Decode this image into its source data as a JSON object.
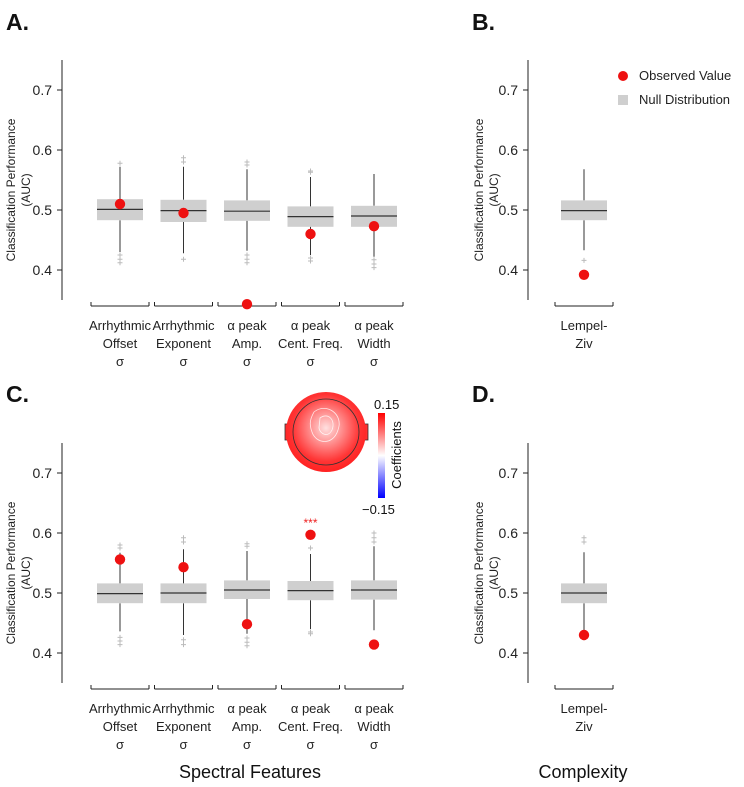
{
  "chart_data": [
    {
      "panel": "A.",
      "type": "box",
      "ylabel_line1": "Classification Performance",
      "ylabel_line2": "(AUC)",
      "ylim": [
        0.35,
        0.75
      ],
      "yticks": [
        "0.4",
        "0.5",
        "0.6",
        "0.7"
      ],
      "categories": [
        {
          "lines": [
            "Arrhythmic",
            "Offset",
            "σ"
          ],
          "q1": 0.483,
          "median": 0.501,
          "q3": 0.518,
          "wlow": 0.43,
          "whigh": 0.572,
          "outliers": [
            0.578,
            0.425,
            0.418,
            0.412
          ],
          "observed": 0.51
        },
        {
          "lines": [
            "Arrhythmic",
            "Exponent",
            "σ"
          ],
          "q1": 0.48,
          "median": 0.499,
          "q3": 0.517,
          "wlow": 0.428,
          "whigh": 0.572,
          "outliers": [
            0.58,
            0.587,
            0.418
          ],
          "observed": 0.495
        },
        {
          "lines": [
            "α peak",
            "Amp.",
            "σ"
          ],
          "q1": 0.482,
          "median": 0.498,
          "q3": 0.516,
          "wlow": 0.432,
          "whigh": 0.568,
          "outliers": [
            0.575,
            0.58,
            0.425,
            0.418,
            0.412
          ],
          "observed": 0.343
        },
        {
          "lines": [
            "α peak",
            "Cent. Freq.",
            "σ"
          ],
          "q1": 0.472,
          "median": 0.489,
          "q3": 0.506,
          "wlow": 0.425,
          "whigh": 0.555,
          "outliers": [
            0.563,
            0.565,
            0.42,
            0.415
          ],
          "observed": 0.46
        },
        {
          "lines": [
            "α peak",
            "Width",
            "σ"
          ],
          "q1": 0.472,
          "median": 0.49,
          "q3": 0.507,
          "wlow": 0.422,
          "whigh": 0.56,
          "outliers": [
            0.417,
            0.41,
            0.404
          ],
          "observed": 0.473
        }
      ]
    },
    {
      "panel": "B.",
      "type": "box",
      "ylabel_line1": "Classification Performance",
      "ylabel_line2": "(AUC)",
      "ylim": [
        0.35,
        0.75
      ],
      "yticks": [
        "0.4",
        "0.5",
        "0.6",
        "0.7"
      ],
      "categories": [
        {
          "lines": [
            "Lempel-",
            "Ziv"
          ],
          "q1": 0.483,
          "median": 0.499,
          "q3": 0.516,
          "wlow": 0.433,
          "whigh": 0.568,
          "outliers": [
            0.416
          ],
          "observed": 0.392
        }
      ]
    },
    {
      "panel": "C.",
      "type": "box",
      "ylabel_line1": "Classification Performance",
      "ylabel_line2": "(AUC)",
      "ylim": [
        0.35,
        0.75
      ],
      "yticks": [
        "0.4",
        "0.5",
        "0.6",
        "0.7"
      ],
      "categories": [
        {
          "lines": [
            "Arrhythmic",
            "Offset",
            "σ"
          ],
          "q1": 0.483,
          "median": 0.499,
          "q3": 0.516,
          "wlow": 0.436,
          "whigh": 0.567,
          "outliers": [
            0.575,
            0.58,
            0.426,
            0.42,
            0.414
          ],
          "observed": 0.556
        },
        {
          "lines": [
            "Arrhythmic",
            "Exponent",
            "σ"
          ],
          "q1": 0.483,
          "median": 0.5,
          "q3": 0.516,
          "wlow": 0.43,
          "whigh": 0.573,
          "outliers": [
            0.585,
            0.592,
            0.422,
            0.414
          ],
          "observed": 0.543
        },
        {
          "lines": [
            "α peak",
            "Amp.",
            "σ"
          ],
          "q1": 0.49,
          "median": 0.505,
          "q3": 0.521,
          "wlow": 0.432,
          "whigh": 0.57,
          "outliers": [
            0.578,
            0.582,
            0.425,
            0.418,
            0.412
          ],
          "observed": 0.448
        },
        {
          "lines": [
            "α peak",
            "Cent. Freq.",
            "σ"
          ],
          "q1": 0.488,
          "median": 0.504,
          "q3": 0.52,
          "wlow": 0.44,
          "whigh": 0.565,
          "outliers": [
            0.575,
            0.435,
            0.432
          ],
          "observed": 0.597,
          "significance": "***"
        },
        {
          "lines": [
            "α peak",
            "Width",
            "σ"
          ],
          "q1": 0.489,
          "median": 0.505,
          "q3": 0.521,
          "wlow": 0.438,
          "whigh": 0.578,
          "outliers": [
            0.585,
            0.592,
            0.6
          ],
          "observed": 0.414
        }
      ]
    },
    {
      "panel": "D.",
      "type": "box",
      "ylabel_line1": "Classification Performance",
      "ylabel_line2": "(AUC)",
      "ylim": [
        0.35,
        0.75
      ],
      "yticks": [
        "0.4",
        "0.5",
        "0.6",
        "0.7"
      ],
      "categories": [
        {
          "lines": [
            "Lempel-",
            "Ziv"
          ],
          "q1": 0.483,
          "median": 0.5,
          "q3": 0.516,
          "wlow": 0.437,
          "whigh": 0.568,
          "outliers": [
            0.585,
            0.592,
            0.425
          ],
          "observed": 0.43
        }
      ]
    }
  ],
  "legend": {
    "observed": "Observed Value",
    "null": "Null Distribution"
  },
  "colorbar": {
    "max_label": "0.15",
    "min_label": "−0.15",
    "title": "Coefficients"
  },
  "group_labels": {
    "spectral": "Spectral Features",
    "complexity": "Complexity"
  },
  "colors": {
    "observed": "#ee1111",
    "box": "#cfcfcf",
    "outlier": "#bbbbbb"
  }
}
